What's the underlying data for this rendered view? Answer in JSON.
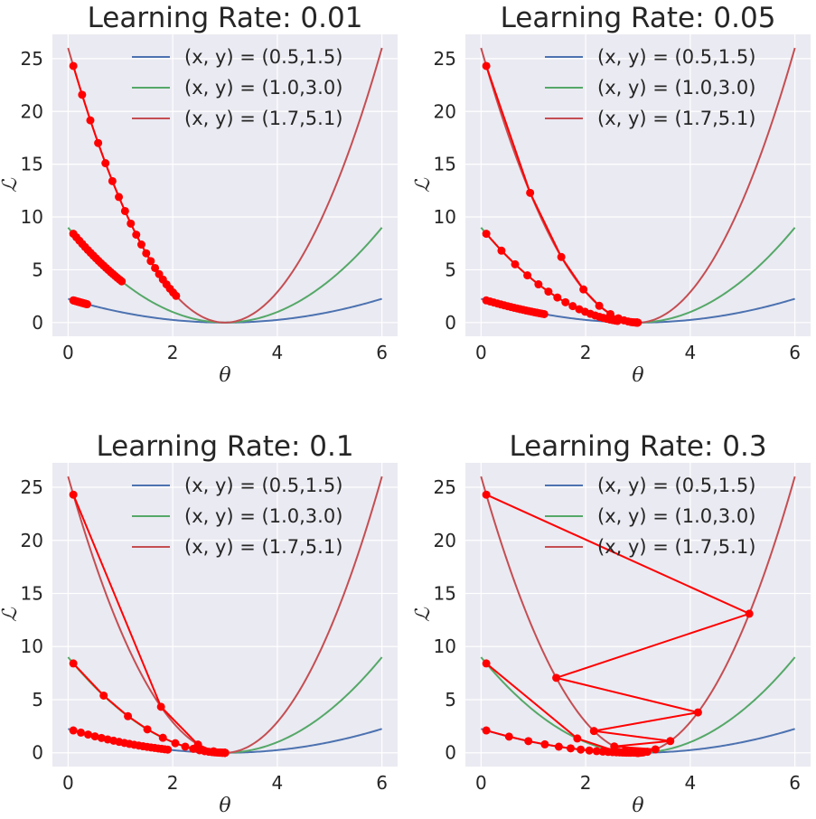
{
  "chart_data": [
    {
      "type": "line",
      "title": "Learning Rate: 0.01",
      "learning_rate": 0.01,
      "xlabel": "θ",
      "ylabel": "ℒ",
      "xlim": [
        -0.3,
        6.3
      ],
      "ylim": [
        -1.3,
        27.3
      ],
      "xticks": [
        0,
        2,
        4,
        6
      ],
      "yticks": [
        0,
        5,
        10,
        15,
        20,
        25
      ],
      "grid": true,
      "legend_position": "top-center",
      "series": [
        {
          "name": "(x, y) = (0.5,1.5)",
          "x_data": 0.5,
          "color": "#4c72b0"
        },
        {
          "name": "(x, y) = (1.0,3.0)",
          "x_data": 1.0,
          "color": "#55a868"
        },
        {
          "name": "(x, y) = (1.7,5.1)",
          "x_data": 1.7,
          "color": "#c44e52"
        }
      ],
      "descent_start_theta": 0.1,
      "descent_steps": 20,
      "descent_color": "#ff0000"
    },
    {
      "type": "line",
      "title": "Learning Rate: 0.05",
      "learning_rate": 0.05,
      "xlabel": "θ",
      "ylabel": "ℒ",
      "xlim": [
        -0.3,
        6.3
      ],
      "ylim": [
        -1.3,
        27.3
      ],
      "xticks": [
        0,
        2,
        4,
        6
      ],
      "yticks": [
        0,
        5,
        10,
        15,
        20,
        25
      ],
      "grid": true,
      "legend_position": "top-center",
      "series": [
        {
          "name": "(x, y) = (0.5,1.5)",
          "x_data": 0.5,
          "color": "#4c72b0"
        },
        {
          "name": "(x, y) = (1.0,3.0)",
          "x_data": 1.0,
          "color": "#55a868"
        },
        {
          "name": "(x, y) = (1.7,5.1)",
          "x_data": 1.7,
          "color": "#c44e52"
        }
      ],
      "descent_start_theta": 0.1,
      "descent_steps": 20,
      "descent_color": "#ff0000"
    },
    {
      "type": "line",
      "title": "Learning Rate: 0.1",
      "learning_rate": 0.1,
      "xlabel": "θ",
      "ylabel": "ℒ",
      "xlim": [
        -0.3,
        6.3
      ],
      "ylim": [
        -1.3,
        27.3
      ],
      "xticks": [
        0,
        2,
        4,
        6
      ],
      "yticks": [
        0,
        5,
        10,
        15,
        20,
        25
      ],
      "grid": true,
      "legend_position": "top-center",
      "series": [
        {
          "name": "(x, y) = (0.5,1.5)",
          "x_data": 0.5,
          "color": "#4c72b0"
        },
        {
          "name": "(x, y) = (1.0,3.0)",
          "x_data": 1.0,
          "color": "#55a868"
        },
        {
          "name": "(x, y) = (1.7,5.1)",
          "x_data": 1.7,
          "color": "#c44e52"
        }
      ],
      "descent_start_theta": 0.1,
      "descent_steps": 20,
      "descent_color": "#ff0000"
    },
    {
      "type": "line",
      "title": "Learning Rate: 0.3",
      "learning_rate": 0.3,
      "xlabel": "θ",
      "ylabel": "ℒ",
      "xlim": [
        -0.3,
        6.3
      ],
      "ylim": [
        -1.3,
        27.3
      ],
      "xticks": [
        0,
        2,
        4,
        6
      ],
      "yticks": [
        0,
        5,
        10,
        15,
        20,
        25
      ],
      "grid": true,
      "legend_position": "top-center",
      "series": [
        {
          "name": "(x, y) = (0.5,1.5)",
          "x_data": 0.5,
          "color": "#4c72b0"
        },
        {
          "name": "(x, y) = (1.0,3.0)",
          "x_data": 1.0,
          "color": "#55a868"
        },
        {
          "name": "(x, y) = (1.7,5.1)",
          "x_data": 1.7,
          "color": "#c44e52"
        }
      ],
      "descent_start_theta": 0.1,
      "descent_steps": 20,
      "descent_color": "#ff0000"
    }
  ],
  "colors": {
    "axes_background": "#eaeaf2",
    "grid": "#ffffff",
    "text": "#262626"
  }
}
